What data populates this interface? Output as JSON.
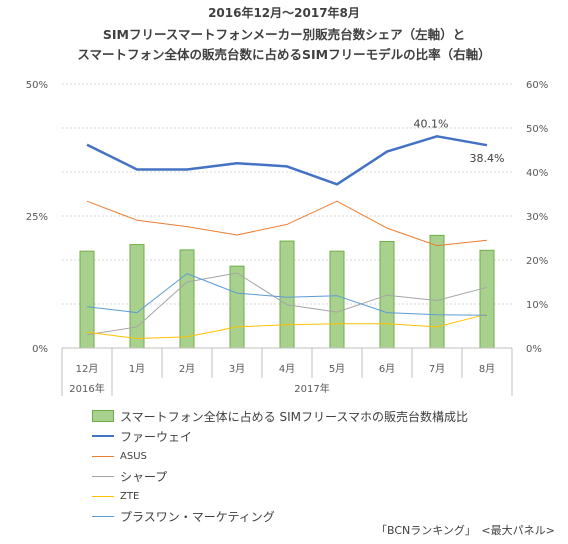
{
  "title": {
    "line1": "2016年12月〜2017年8月",
    "line2": "SIMフリースマートフォンメーカー別販売台数シェア（左軸）と",
    "line3": "スマートフォン全体の販売台数に占めるSIMフリーモデルの比率（右軸）"
  },
  "source": "「BCNランキング」　<最大パネル>",
  "colors": {
    "bar_fill": "#A9D18E",
    "bar_stroke": "#70AD47",
    "grid": "#D9D9D9",
    "axis_text": "#595959"
  },
  "chart_data": {
    "type": "bar+line",
    "categories": [
      "12月",
      "1月",
      "2月",
      "3月",
      "4月",
      "5月",
      "6月",
      "7月",
      "8月"
    ],
    "year_groups": [
      {
        "label": "2016年",
        "start": 0,
        "end": 0
      },
      {
        "label": "2017年",
        "start": 1,
        "end": 8
      }
    ],
    "left_axis": {
      "ylim": [
        0,
        50
      ],
      "ticks": [
        "0%",
        "25%",
        "50%"
      ],
      "tick_values": [
        0,
        25,
        50
      ]
    },
    "right_axis": {
      "ylim": [
        0,
        60
      ],
      "ticks": [
        "0%",
        "10%",
        "20%",
        "30%",
        "40%",
        "50%",
        "60%"
      ],
      "tick_values": [
        0,
        10,
        20,
        30,
        40,
        50,
        60
      ]
    },
    "grid": true,
    "legend_position": "bottom",
    "bar_series": {
      "name": "スマートフォン全体に占める SIMフリースマホの販売台数構成比",
      "axis": "right",
      "values": [
        22,
        23.5,
        22.3,
        18.6,
        24.3,
        22,
        24.2,
        25.6,
        22.2
      ],
      "color": "#A9D18E"
    },
    "line_series": [
      {
        "name": "ファーウェイ",
        "axis": "left",
        "color": "#4472C4",
        "width": 2.5,
        "values": [
          38.5,
          33.8,
          33.8,
          35.0,
          34.4,
          31.0,
          37.2,
          40.1,
          38.4
        ]
      },
      {
        "name": "ASUS",
        "axis": "left",
        "color": "#ED7D31",
        "width": 1,
        "values": [
          27.8,
          24.2,
          23.0,
          21.4,
          23.4,
          27.8,
          22.7,
          19.4,
          20.4
        ]
      },
      {
        "name": "シャープ",
        "axis": "left",
        "color": "#A5A5A5",
        "width": 1,
        "values": [
          2.5,
          4.0,
          12.5,
          14.2,
          8.2,
          6.8,
          10.0,
          9.0,
          11.5
        ]
      },
      {
        "name": "ZTE",
        "axis": "left",
        "color": "#FFC000",
        "width": 1,
        "values": [
          3.0,
          1.8,
          2.1,
          4.0,
          4.4,
          4.6,
          4.6,
          4.0,
          6.4
        ]
      },
      {
        "name": "プラスワン・マーケティング",
        "axis": "left",
        "color": "#5B9BD5",
        "width": 1,
        "values": [
          7.8,
          6.7,
          14.1,
          10.4,
          9.6,
          9.9,
          6.7,
          6.3,
          6.2
        ]
      }
    ],
    "data_labels": [
      {
        "series": 0,
        "index": 7,
        "text": "40.1%",
        "position": "above"
      },
      {
        "series": 0,
        "index": 8,
        "text": "38.4%",
        "position": "below"
      }
    ]
  }
}
